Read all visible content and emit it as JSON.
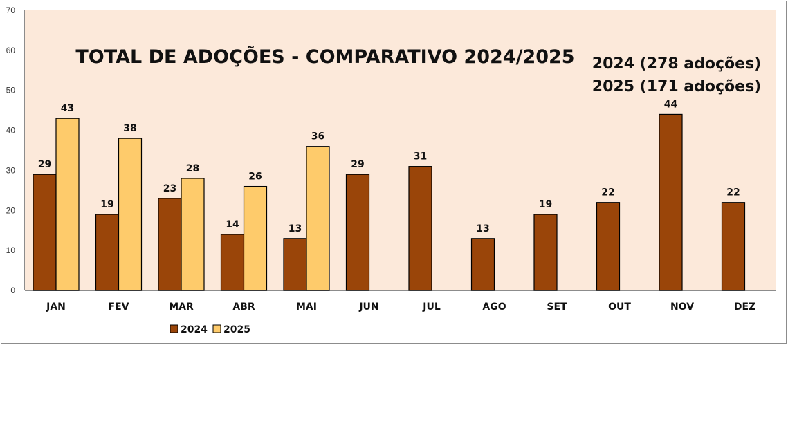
{
  "chart_data": {
    "type": "bar",
    "title": "TOTAL DE ADOÇÕES - COMPARATIVO 2024/2025",
    "annotations": [
      "2024 (278 adoções)",
      "2025 (171 adoções)"
    ],
    "categories": [
      "JAN",
      "FEV",
      "MAR",
      "ABR",
      "MAI",
      "JUN",
      "JUL",
      "AGO",
      "SET",
      "OUT",
      "NOV",
      "DEZ"
    ],
    "series": [
      {
        "name": "2024",
        "color": "#9a4509",
        "values": [
          29,
          19,
          23,
          14,
          13,
          29,
          31,
          13,
          19,
          22,
          44,
          22
        ]
      },
      {
        "name": "2025",
        "color": "#fecb6b",
        "values": [
          43,
          38,
          28,
          26,
          36,
          null,
          null,
          null,
          null,
          null,
          null,
          null
        ]
      }
    ],
    "ylim": [
      0,
      70
    ],
    "yticks": [
      0,
      10,
      20,
      30,
      40,
      50,
      60,
      70
    ],
    "xlabel": "",
    "ylabel": "",
    "legend_position": "bottom-left",
    "plot_background": "#fce9da",
    "grid": false
  }
}
